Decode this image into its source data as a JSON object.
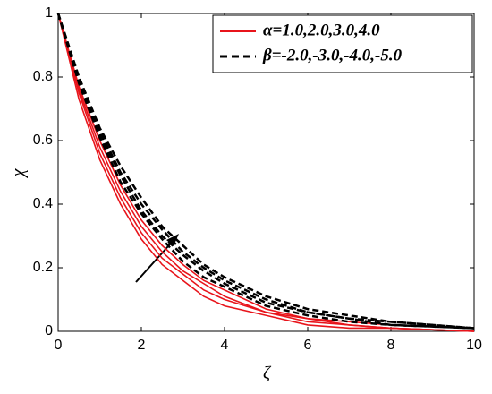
{
  "chart_data": {
    "type": "line",
    "x": [
      0,
      0.5,
      1,
      1.5,
      2,
      2.5,
      3,
      3.5,
      4,
      5,
      6,
      7,
      8,
      10
    ],
    "series": [
      {
        "name": "α=1.0,2.0,3.0,4.0",
        "color": "#e8141b",
        "dash": false,
        "values": [
          1,
          0.73,
          0.54,
          0.4,
          0.29,
          0.21,
          0.16,
          0.11,
          0.08,
          0.05,
          0.02,
          0.01,
          0.01,
          0
        ]
      },
      {
        "color": "#e8141b",
        "dash": false,
        "values": [
          1,
          0.75,
          0.56,
          0.42,
          0.31,
          0.23,
          0.18,
          0.13,
          0.1,
          0.06,
          0.03,
          0.02,
          0.01,
          0
        ]
      },
      {
        "color": "#e8141b",
        "dash": false,
        "values": [
          1,
          0.76,
          0.58,
          0.44,
          0.33,
          0.25,
          0.19,
          0.15,
          0.11,
          0.06,
          0.04,
          0.02,
          0.01,
          0
        ]
      },
      {
        "color": "#e8141b",
        "dash": false,
        "values": [
          1,
          0.77,
          0.6,
          0.46,
          0.35,
          0.27,
          0.21,
          0.16,
          0.13,
          0.07,
          0.04,
          0.03,
          0.02,
          0.01
        ]
      },
      {
        "name": "β=-2.0,-3.0,-4.0,-5.0",
        "color": "#000000",
        "dash": true,
        "values": [
          1,
          0.78,
          0.61,
          0.47,
          0.37,
          0.29,
          0.22,
          0.17,
          0.14,
          0.08,
          0.05,
          0.03,
          0.02,
          0.01
        ]
      },
      {
        "color": "#000000",
        "dash": true,
        "values": [
          1,
          0.79,
          0.62,
          0.49,
          0.38,
          0.3,
          0.24,
          0.19,
          0.15,
          0.09,
          0.06,
          0.04,
          0.02,
          0.01
        ]
      },
      {
        "color": "#000000",
        "dash": true,
        "values": [
          1,
          0.8,
          0.63,
          0.5,
          0.4,
          0.32,
          0.25,
          0.2,
          0.16,
          0.1,
          0.06,
          0.04,
          0.03,
          0.01
        ]
      },
      {
        "color": "#000000",
        "dash": true,
        "values": [
          1,
          0.8,
          0.64,
          0.52,
          0.42,
          0.33,
          0.27,
          0.21,
          0.17,
          0.11,
          0.07,
          0.05,
          0.03,
          0.01
        ]
      }
    ],
    "xlabel": "ζ",
    "ylabel": "χ",
    "xlim": [
      0,
      10
    ],
    "ylim": [
      0,
      1
    ],
    "xticks": [
      0,
      2,
      4,
      6,
      8,
      10
    ],
    "yticks": [
      0,
      0.2,
      0.4,
      0.6,
      0.8,
      1
    ],
    "legend": "upper right",
    "grid": false
  }
}
